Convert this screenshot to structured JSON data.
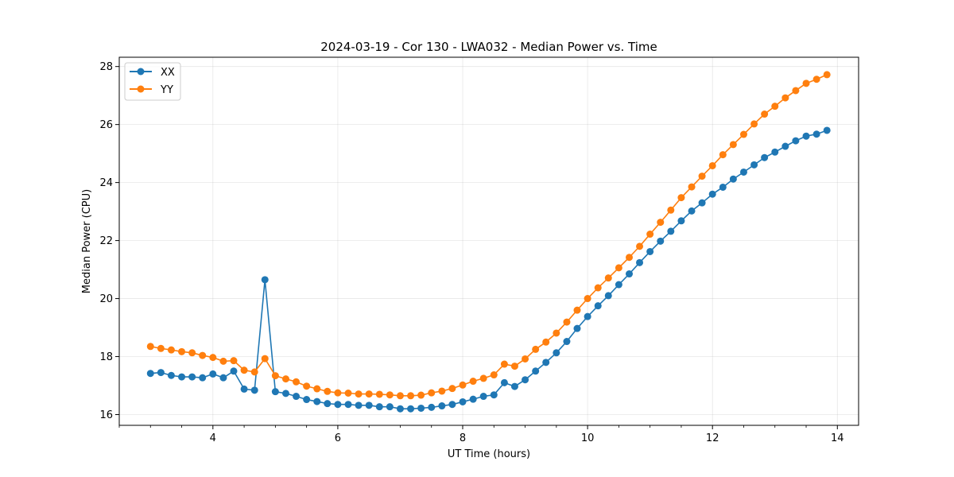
{
  "chart_data": {
    "type": "line",
    "title": "2024-03-19 - Cor 130 - LWA032 - Median Power vs. Time",
    "xlabel": "UT Time (hours)",
    "ylabel": "Median Power (CPU)",
    "xlim": [
      2.5,
      14.34
    ],
    "ylim": [
      15.63,
      28.32
    ],
    "xticks": [
      4,
      6,
      8,
      10,
      12,
      14
    ],
    "xtick_labels": [
      "4",
      "6",
      "8",
      "10",
      "12",
      "14"
    ],
    "x_minor_step": 0.5,
    "yticks": [
      16,
      18,
      20,
      22,
      24,
      26,
      28
    ],
    "ytick_labels": [
      "16",
      "18",
      "20",
      "22",
      "24",
      "26",
      "28"
    ],
    "grid": true,
    "legend_position": "top-left",
    "x": [
      3.0,
      3.167,
      3.333,
      3.5,
      3.667,
      3.833,
      4.0,
      4.167,
      4.333,
      4.5,
      4.667,
      4.833,
      5.0,
      5.167,
      5.333,
      5.5,
      5.667,
      5.833,
      6.0,
      6.167,
      6.333,
      6.5,
      6.667,
      6.833,
      7.0,
      7.167,
      7.333,
      7.5,
      7.667,
      7.833,
      8.0,
      8.167,
      8.333,
      8.5,
      8.667,
      8.833,
      9.0,
      9.167,
      9.333,
      9.5,
      9.667,
      9.833,
      10.0,
      10.167,
      10.333,
      10.5,
      10.667,
      10.833,
      11.0,
      11.167,
      11.333,
      11.5,
      11.667,
      11.833,
      12.0,
      12.167,
      12.333,
      12.5,
      12.667,
      12.833,
      13.0,
      13.167,
      13.333,
      13.5,
      13.667,
      13.833
    ],
    "series": [
      {
        "name": "XX",
        "color": "#1f77b4",
        "values": [
          17.42,
          17.45,
          17.35,
          17.3,
          17.3,
          17.27,
          17.4,
          17.27,
          17.5,
          16.88,
          16.84,
          20.65,
          16.79,
          16.73,
          16.63,
          16.52,
          16.45,
          16.38,
          16.35,
          16.35,
          16.32,
          16.32,
          16.27,
          16.27,
          16.2,
          16.2,
          16.22,
          16.25,
          16.3,
          16.35,
          16.44,
          16.53,
          16.63,
          16.68,
          17.1,
          16.97,
          17.2,
          17.5,
          17.8,
          18.13,
          18.52,
          18.97,
          19.38,
          19.75,
          20.1,
          20.48,
          20.85,
          21.24,
          21.62,
          21.98,
          22.32,
          22.68,
          23.02,
          23.3,
          23.6,
          23.84,
          24.12,
          24.36,
          24.61,
          24.86,
          25.05,
          25.25,
          25.44,
          25.6,
          25.67,
          25.8
        ]
      },
      {
        "name": "YY",
        "color": "#ff7f0e",
        "values": [
          18.35,
          18.28,
          18.23,
          18.17,
          18.13,
          18.04,
          17.97,
          17.84,
          17.86,
          17.53,
          17.47,
          17.93,
          17.34,
          17.23,
          17.13,
          16.98,
          16.89,
          16.8,
          16.75,
          16.74,
          16.71,
          16.71,
          16.7,
          16.68,
          16.65,
          16.65,
          16.67,
          16.75,
          16.81,
          16.9,
          17.02,
          17.15,
          17.25,
          17.37,
          17.74,
          17.67,
          17.92,
          18.25,
          18.5,
          18.81,
          19.19,
          19.6,
          20.0,
          20.37,
          20.71,
          21.06,
          21.42,
          21.8,
          22.22,
          22.63,
          23.05,
          23.48,
          23.85,
          24.22,
          24.58,
          24.96,
          25.31,
          25.66,
          26.02,
          26.36,
          26.63,
          26.92,
          27.17,
          27.42,
          27.56,
          27.72
        ]
      }
    ]
  }
}
